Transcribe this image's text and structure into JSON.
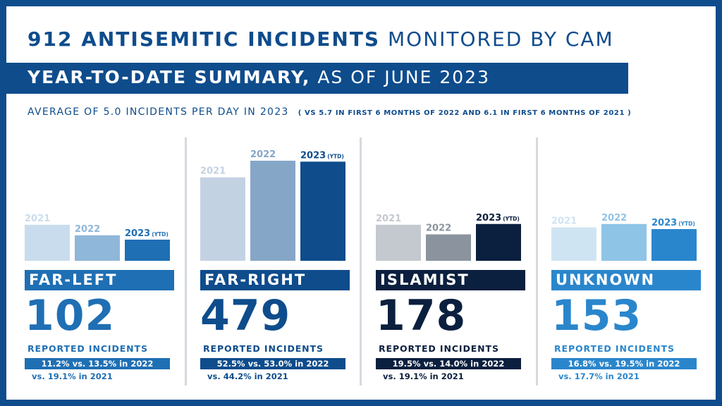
{
  "header": {
    "title_bold": "912 ANTISEMITIC INCIDENTS",
    "title_light": "MONITORED BY CAM",
    "banner_bold": "YEAR-TO-DATE SUMMARY,",
    "banner_light": "AS OF JUNE 2023",
    "avg_main": "AVERAGE OF 5.0 INCIDENTS PER DAY IN 2023",
    "avg_sub": "( VS 5.7 IN FIRST 6 MONTHS OF 2022 AND 6.1 IN FIRST 6 MONTHS OF 2021 )"
  },
  "colors": {
    "brand_blue": "#0e4c8c",
    "divider": "#d6d9de"
  },
  "chart_data": [
    {
      "type": "bar",
      "categories": [
        "2021",
        "2022",
        "2023"
      ],
      "category_suffix": [
        "",
        "",
        "(YTD)"
      ],
      "values": [
        19.1,
        13.5,
        11.2
      ],
      "ylim": [
        0,
        53
      ],
      "bar_colors": [
        "#c9dced",
        "#8fb7d9",
        "#1f6fb4"
      ],
      "label_colors": [
        "#c9dced",
        "#8fb7d9",
        "#1f6fb4"
      ],
      "label": "FAR-LEFT",
      "label_bg": "#1f6fb4",
      "count": "102",
      "count_color": "#1f6fb4",
      "reported_text": "REPORTED INCIDENTS",
      "reported_color": "#1f6fb4",
      "cmp_2022": "11.2% vs. 13.5% in 2022",
      "cmp_2021": "vs. 19.1% in 2021"
    },
    {
      "type": "bar",
      "categories": [
        "2021",
        "2022",
        "2023"
      ],
      "category_suffix": [
        "",
        "",
        "(YTD)"
      ],
      "values": [
        44.2,
        53.0,
        52.5
      ],
      "ylim": [
        0,
        53
      ],
      "bar_colors": [
        "#c3d2e3",
        "#86a6c8",
        "#0e4c8c"
      ],
      "label_colors": [
        "#c3d2e3",
        "#86a6c8",
        "#0e4c8c"
      ],
      "label": "FAR-RIGHT",
      "label_bg": "#0e4c8c",
      "count": "479",
      "count_color": "#0e4c8c",
      "reported_text": "REPORTED INCIDENTS",
      "reported_color": "#0e4c8c",
      "cmp_2022": "52.5% vs. 53.0% in 2022",
      "cmp_2021": "vs. 44.2% in 2021"
    },
    {
      "type": "bar",
      "categories": [
        "2021",
        "2022",
        "2023"
      ],
      "category_suffix": [
        "",
        "",
        "(YTD)"
      ],
      "values": [
        19.1,
        14.0,
        19.5
      ],
      "ylim": [
        0,
        53
      ],
      "bar_colors": [
        "#c4c9cf",
        "#8b949e",
        "#0b1f3e"
      ],
      "label_colors": [
        "#c4c9cf",
        "#8b949e",
        "#0b1f3e"
      ],
      "label": "ISLAMIST",
      "label_bg": "#0b1f3e",
      "count": "178",
      "count_color": "#0b1f3e",
      "reported_text": "REPORTED INCIDENTS",
      "reported_color": "#0b1f3e",
      "cmp_2022": "19.5% vs. 14.0% in 2022",
      "cmp_2021": "vs. 19.1% in 2021"
    },
    {
      "type": "bar",
      "categories": [
        "2021",
        "2022",
        "2023"
      ],
      "category_suffix": [
        "",
        "",
        "(YTD)"
      ],
      "values": [
        17.7,
        19.5,
        16.8
      ],
      "ylim": [
        0,
        53
      ],
      "bar_colors": [
        "#cfe4f3",
        "#8ec4e6",
        "#2a86cc"
      ],
      "label_colors": [
        "#cfe4f3",
        "#8ec4e6",
        "#2a86cc"
      ],
      "label": "UNKNOWN",
      "label_bg": "#2a86cc",
      "count": "153",
      "count_color": "#2a86cc",
      "reported_text": "REPORTED INCIDENTS",
      "reported_color": "#2a86cc",
      "cmp_2022": "16.8% vs. 19.5% in 2022",
      "cmp_2021": "vs. 17.7% in 2021"
    }
  ]
}
